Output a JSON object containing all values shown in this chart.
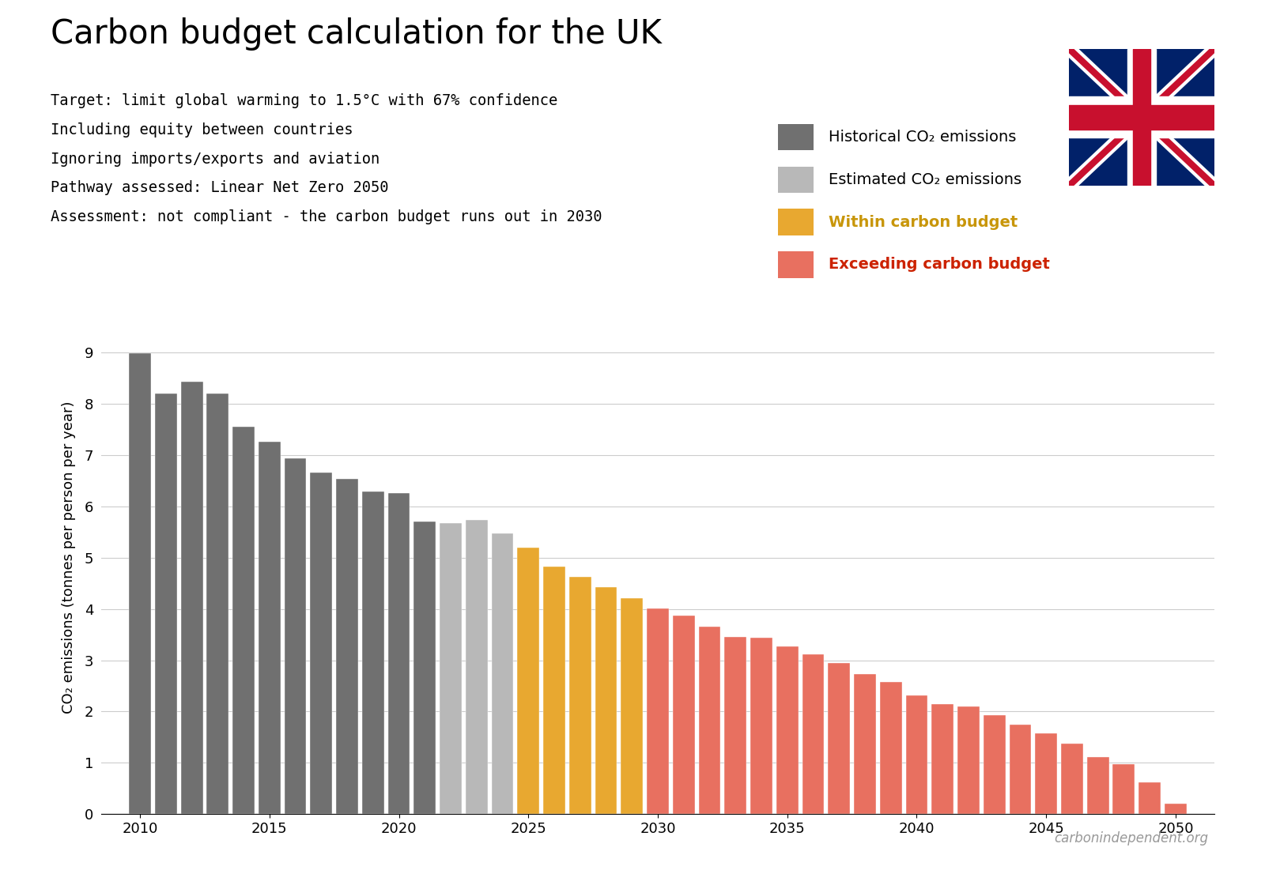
{
  "title": "Carbon budget calculation for the UK",
  "subtitle_lines": [
    "Target: limit global warming to 1.5°C with 67% confidence",
    "Including equity between countries",
    "Ignoring imports/exports and aviation",
    "Pathway assessed: Linear Net Zero 2050",
    "Assessment: not compliant - the carbon budget runs out in 2030"
  ],
  "years": [
    2010,
    2011,
    2012,
    2013,
    2014,
    2015,
    2016,
    2017,
    2018,
    2019,
    2020,
    2021,
    2022,
    2023,
    2024,
    2025,
    2026,
    2027,
    2028,
    2029,
    2030,
    2031,
    2032,
    2033,
    2034,
    2035,
    2036,
    2037,
    2038,
    2039,
    2040,
    2041,
    2042,
    2043,
    2044,
    2045,
    2046,
    2047,
    2048,
    2049,
    2050
  ],
  "values": [
    8.98,
    8.2,
    8.43,
    8.2,
    7.55,
    7.26,
    6.93,
    6.65,
    6.54,
    6.28,
    6.26,
    5.7,
    5.67,
    5.73,
    5.47,
    5.19,
    4.83,
    4.62,
    4.42,
    4.21,
    4.01,
    3.87,
    3.65,
    3.45,
    3.44,
    3.27,
    3.11,
    2.95,
    2.73,
    2.57,
    2.32,
    2.15,
    2.1,
    1.93,
    1.75,
    1.57,
    1.37,
    1.11,
    0.98,
    0.62,
    0.2
  ],
  "bar_types": [
    "historical",
    "historical",
    "historical",
    "historical",
    "historical",
    "historical",
    "historical",
    "historical",
    "historical",
    "historical",
    "historical",
    "historical",
    "estimated",
    "estimated",
    "estimated",
    "within",
    "within",
    "within",
    "within",
    "within",
    "exceeding",
    "exceeding",
    "exceeding",
    "exceeding",
    "exceeding",
    "exceeding",
    "exceeding",
    "exceeding",
    "exceeding",
    "exceeding",
    "exceeding",
    "exceeding",
    "exceeding",
    "exceeding",
    "exceeding",
    "exceeding",
    "exceeding",
    "exceeding",
    "exceeding",
    "exceeding",
    "exceeding"
  ],
  "colors": {
    "historical": "#707070",
    "estimated": "#b8b8b8",
    "within": "#e8a830",
    "exceeding": "#e87060"
  },
  "legend_labels": {
    "historical": "Historical CO₂ emissions",
    "estimated": "Estimated CO₂ emissions",
    "within": "Within carbon budget",
    "exceeding": "Exceeding carbon budget"
  },
  "legend_text_colors": {
    "historical": "#000000",
    "estimated": "#000000",
    "within": "#c8960a",
    "exceeding": "#cc2200"
  },
  "ylabel": "CO₂ emissions (tonnes per person per year)",
  "ylim": [
    0,
    10.0
  ],
  "yticks": [
    0,
    1,
    2,
    3,
    4,
    5,
    6,
    7,
    8,
    9
  ],
  "xlim": [
    2008.5,
    2051.5
  ],
  "xticks": [
    2010,
    2015,
    2020,
    2025,
    2030,
    2035,
    2040,
    2045,
    2050
  ],
  "title_fontsize": 30,
  "subtitle_fontsize": 13.5,
  "axis_fontsize": 13,
  "tick_fontsize": 13,
  "legend_fontsize": 14,
  "watermark": "carbonindependent.org",
  "background_color": "#ffffff",
  "grid_color": "#cccccc"
}
